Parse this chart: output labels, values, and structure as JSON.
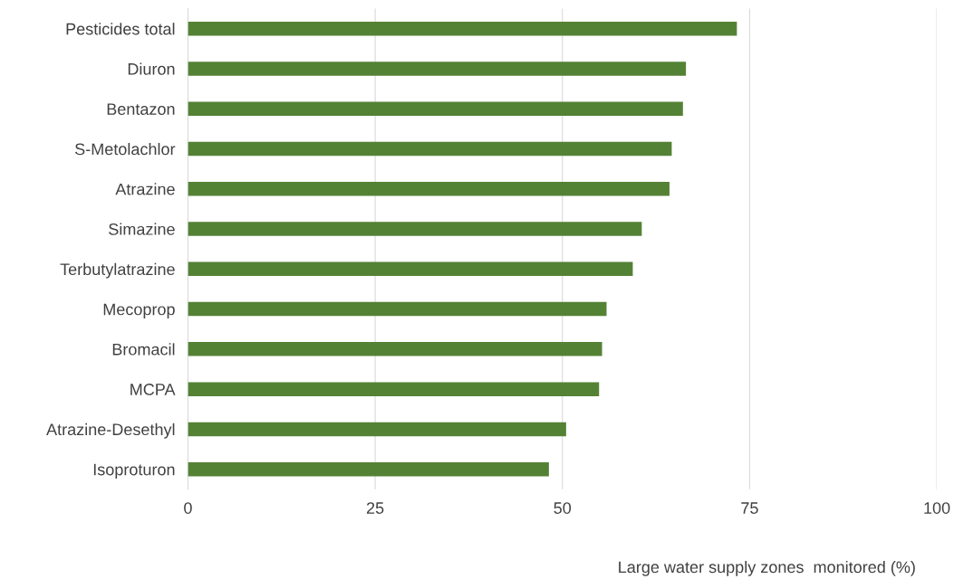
{
  "chart_data": {
    "type": "bar",
    "orientation": "horizontal",
    "categories": [
      "Pesticides total",
      "Diuron",
      "Bentazon",
      "S-Metolachlor",
      "Atrazine",
      "Simazine",
      "Terbutylatrazine",
      "Mecoprop",
      "Bromacil",
      "MCPA",
      "Atrazine-Desethyl",
      "Isoproturon"
    ],
    "values": [
      73.3,
      66.5,
      66.1,
      64.6,
      64.3,
      60.6,
      59.4,
      55.9,
      55.3,
      54.9,
      50.5,
      48.2
    ],
    "color": "#548235",
    "xlim": [
      0,
      100
    ],
    "xticks": [
      0,
      25,
      50,
      75,
      100
    ],
    "grid": "x",
    "xlabel": "Large water supply zones  monitored (%)"
  }
}
